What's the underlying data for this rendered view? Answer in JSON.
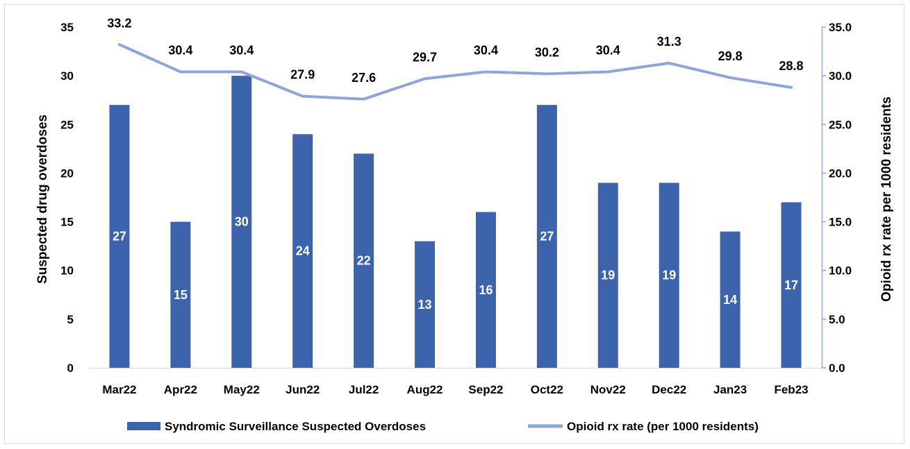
{
  "chart_data": {
    "type": "bar+line",
    "categories": [
      "Mar22",
      "Apr22",
      "May22",
      "Jun22",
      "Jul22",
      "Aug22",
      "Sep22",
      "Oct22",
      "Nov22",
      "Dec22",
      "Jan23",
      "Feb23"
    ],
    "series": [
      {
        "name": "Syndromic Surveillance Suspected Overdoses",
        "type": "bar",
        "axis": "left",
        "color": "#3c64ad",
        "values": [
          27,
          15,
          30,
          24,
          22,
          13,
          16,
          27,
          19,
          19,
          14,
          17
        ],
        "labels": [
          "27",
          "15",
          "30",
          "24",
          "22",
          "13",
          "16",
          "27",
          "19",
          "19",
          "14",
          "17"
        ]
      },
      {
        "name": "Opioid rx rate (per 1000 residents)",
        "type": "line",
        "axis": "right",
        "color": "#8ea5d9",
        "values": [
          33.2,
          30.4,
          30.4,
          27.9,
          27.6,
          29.7,
          30.4,
          30.2,
          30.4,
          31.3,
          29.8,
          28.8
        ],
        "labels": [
          "33.2",
          "30.4",
          "30.4",
          "27.9",
          "27.6",
          "29.7",
          "30.4",
          "30.2",
          "30.4",
          "31.3",
          "29.8",
          "28.8"
        ]
      }
    ],
    "ylabel": "Suspected drug overdoses",
    "y2label": "Opioid rx rate per 1000 residents",
    "ylim": [
      0,
      35
    ],
    "y2lim": [
      0,
      35
    ],
    "yticks": [
      "0",
      "5",
      "10",
      "15",
      "20",
      "25",
      "30",
      "35"
    ],
    "y2ticks": [
      "0.0",
      "5.0",
      "10.0",
      "15.0",
      "20.0",
      "25.0",
      "30.0",
      "35.0"
    ],
    "legend_position": "bottom",
    "grid": false
  }
}
